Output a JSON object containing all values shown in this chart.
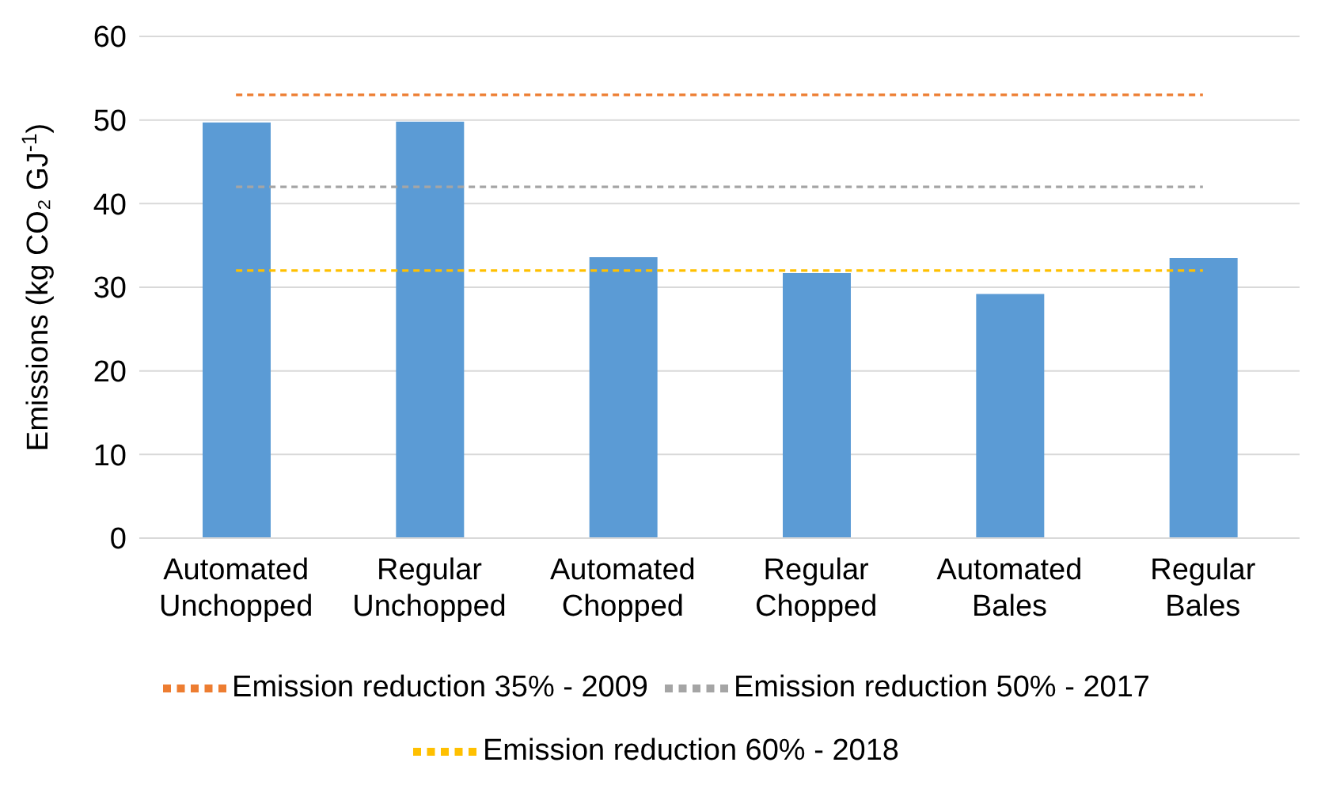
{
  "chart_data": {
    "type": "bar",
    "ylabel": "Emissions (kg CO₂ GJ$^{-1}$)",
    "categories": [
      "Automated Unchopped",
      "Regular Unchopped",
      "Automated Chopped",
      "Regular Chopped",
      "Automated Bales",
      "Regular Bales"
    ],
    "series": [
      {
        "color": "#5b9bd5",
        "values": [
          49.7,
          49.8,
          33.6,
          31.7,
          29.2,
          33.5
        ]
      },
      {
        "type": "line",
        "name": "Emission reduction 35% - 2009",
        "color": "#ed7d31",
        "line_style": "dashed",
        "values": [
          53,
          53,
          53,
          53,
          53,
          53
        ]
      },
      {
        "type": "line",
        "name": "Emission reduction 50% - 2017",
        "color": "#a5a5a5",
        "line_style": "dashed",
        "values": [
          42,
          42,
          42,
          42,
          42,
          42
        ]
      },
      {
        "type": "line",
        "name": "Emission reduction 60% - 2018",
        "color": "#ffc000",
        "line_style": "dashed",
        "values": [
          32,
          32,
          32,
          32,
          32,
          32
        ]
      }
    ],
    "ylim": [
      0,
      60
    ],
    "yticks": [
      0,
      10,
      20,
      30,
      40,
      50,
      60
    ],
    "grid": "y",
    "legend": "bottom",
    "marker": "none"
  }
}
